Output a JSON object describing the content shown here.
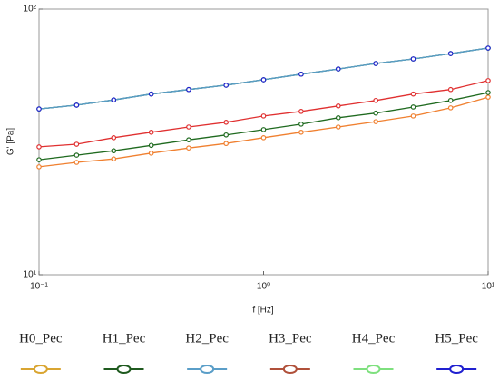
{
  "chart_data": {
    "type": "line",
    "xlabel": "f [Hz]",
    "ylabel": "G' [Pa]",
    "xscale": "log",
    "yscale": "log",
    "xlim": [
      0.1,
      10
    ],
    "ylim": [
      10,
      100
    ],
    "xticks": [
      {
        "value": 0.1,
        "label": "10⁻¹"
      },
      {
        "value": 1,
        "label": "10⁰"
      },
      {
        "value": 10,
        "label": "10¹"
      }
    ],
    "yticks": [
      {
        "value": 10,
        "label": "10¹"
      },
      {
        "value": 100,
        "label": "10²"
      }
    ],
    "grid": false,
    "legend": "bottom",
    "x": [
      0.1,
      0.147,
      0.215,
      0.316,
      0.464,
      0.681,
      1,
      1.47,
      2.15,
      3.16,
      4.64,
      6.81,
      10
    ],
    "series": [
      {
        "name": "H0_Pec",
        "color": "#f08030",
        "legend_color": "#d9a531",
        "values": [
          25.5,
          26.5,
          27.3,
          28.7,
          30.0,
          31.2,
          32.8,
          34.4,
          36.0,
          37.7,
          39.6,
          42.5,
          46.6
        ]
      },
      {
        "name": "H1_Pec",
        "color": "#1f6a1f",
        "legend_color": "#1f5a1f",
        "values": [
          27.1,
          28.2,
          29.3,
          30.7,
          32.2,
          33.6,
          35.2,
          36.9,
          39.0,
          40.6,
          42.8,
          45.3,
          48.5
        ]
      },
      {
        "name": "H2_Pec",
        "color": "#5a9ec8",
        "legend_color": "#5a9ec8",
        "values": [
          42.1,
          43.5,
          45.5,
          47.9,
          49.8,
          51.7,
          54.2,
          56.9,
          59.5,
          62.4,
          64.9,
          68.0,
          71.3
        ]
      },
      {
        "name": "H3_Pec",
        "color": "#e03030",
        "legend_color": "#b0503a",
        "values": [
          30.3,
          31.0,
          32.8,
          34.4,
          36.0,
          37.5,
          39.6,
          41.2,
          43.2,
          45.3,
          47.9,
          49.8,
          53.8
        ]
      },
      {
        "name": "H4_Pec",
        "color": "#3aa03a",
        "legend_color": "#7ee07e",
        "values": [
          42.1,
          43.5,
          45.5,
          47.9,
          49.8,
          51.7,
          54.2,
          56.9,
          59.5,
          62.4,
          64.9,
          68.0,
          71.3
        ]
      },
      {
        "name": "H5_Pec",
        "color": "#2020d0",
        "legend_color": "#2020d0",
        "values": [
          42.1,
          43.5,
          45.5,
          47.9,
          49.8,
          51.7,
          54.2,
          56.9,
          59.5,
          62.4,
          64.9,
          68.0,
          71.3
        ]
      }
    ]
  }
}
